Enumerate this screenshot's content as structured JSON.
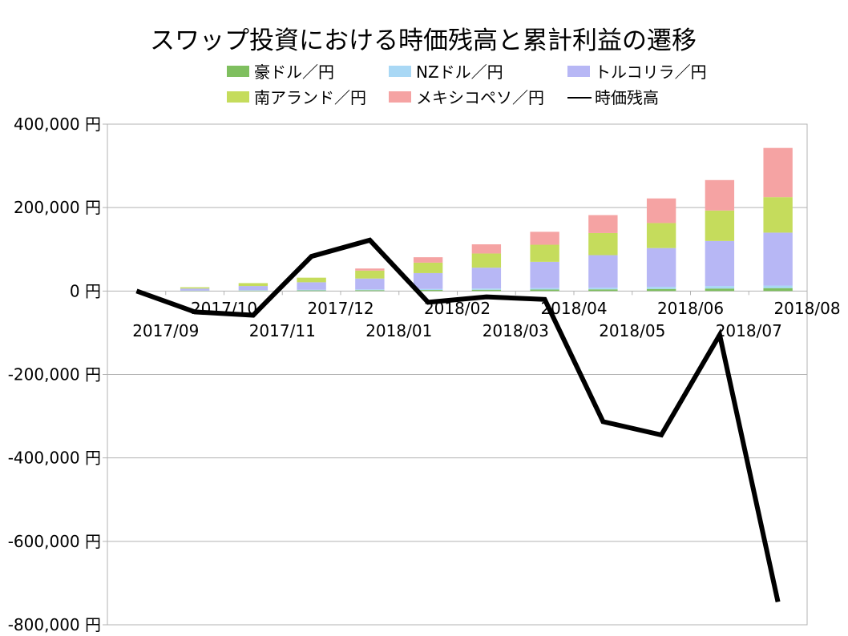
{
  "chart_data": {
    "type": "bar",
    "title": "スワップ投資における時価残高と累計利益の遷移",
    "categories": [
      "2017/09",
      "2017/10",
      "2017/11",
      "2017/12",
      "2018/01",
      "2018/02",
      "2018/03",
      "2018/04",
      "2018/05",
      "2018/06",
      "2018/07",
      "2018/08"
    ],
    "ylim": [
      -800000,
      400000
    ],
    "yticks": [
      {
        "value": 400000,
        "label": "400,000 円"
      },
      {
        "value": 200000,
        "label": "200,000 円"
      },
      {
        "value": 0,
        "label": "0 円"
      },
      {
        "value": -200000,
        "label": "-200,000 円"
      },
      {
        "value": -400000,
        "label": "-400,000 円"
      },
      {
        "value": -600000,
        "label": "-600,000 円"
      },
      {
        "value": -800000,
        "label": "-800,000 円"
      }
    ],
    "grid": true,
    "legend_position": "top",
    "series": [
      {
        "name": "豪ドル／円",
        "kind": "bar",
        "color": "#7fbf5f",
        "values": [
          0,
          500,
          1000,
          1500,
          2000,
          2500,
          3000,
          3500,
          4000,
          5000,
          6000,
          7000
        ]
      },
      {
        "name": "NZドル／円",
        "kind": "bar",
        "color": "#a9d8f5",
        "values": [
          0,
          500,
          1000,
          1500,
          2000,
          2500,
          3000,
          3500,
          4000,
          5000,
          6000,
          6000
        ]
      },
      {
        "name": "トルコリラ／円",
        "kind": "bar",
        "color": "#b7b7f5",
        "values": [
          0,
          5000,
          10000,
          18000,
          26000,
          38000,
          50000,
          63000,
          78000,
          93000,
          108000,
          127000
        ]
      },
      {
        "name": "南アランド／円",
        "kind": "bar",
        "color": "#c5dc5c",
        "values": [
          0,
          3000,
          7000,
          11000,
          19000,
          25000,
          34000,
          41000,
          53000,
          60000,
          73000,
          85000
        ]
      },
      {
        "name": "メキシコペソ／円",
        "kind": "bar",
        "color": "#f5a3a3",
        "values": [
          0,
          0,
          0,
          0,
          5000,
          13000,
          22000,
          31000,
          43000,
          59000,
          73000,
          118000
        ]
      },
      {
        "name": "時価残高",
        "kind": "line",
        "color": "#000000",
        "values": [
          0,
          -50000,
          -58000,
          83000,
          122000,
          -27000,
          -14000,
          -20000,
          -313000,
          -345000,
          -105000,
          -745000
        ]
      }
    ]
  }
}
